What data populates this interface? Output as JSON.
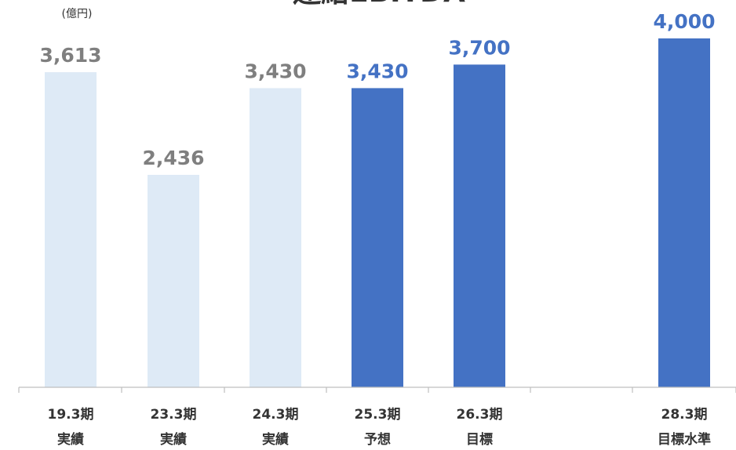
{
  "chart_data": {
    "type": "bar",
    "title": "連結EBITDA",
    "unit_label": "(億円)",
    "ylim": [
      0,
      4000
    ],
    "grid": false,
    "legend": "none",
    "categories": [
      {
        "line1": "19.3期",
        "line2": "実績"
      },
      {
        "line1": "23.3期",
        "line2": "実績"
      },
      {
        "line1": "24.3期",
        "line2": "実績"
      },
      {
        "line1": "25.3期",
        "line2": "予想"
      },
      {
        "line1": "26.3期",
        "line2": "目標"
      },
      {
        "line1": "",
        "line2": ""
      },
      {
        "line1": "28.3期",
        "line2": "目標水準"
      }
    ],
    "values": [
      3613,
      2436,
      3430,
      3430,
      3700,
      null,
      4000
    ],
    "value_labels": [
      "3,613",
      "2,436",
      "3,430",
      "3,430",
      "3,700",
      "",
      "4,000"
    ],
    "bar_styles": [
      "actual",
      "actual",
      "actual",
      "plan",
      "plan",
      "none",
      "plan"
    ]
  },
  "colors": {
    "actual_bar": "#DEEAF6",
    "plan_bar": "#4472C4",
    "actual_label": "#7F7F7F",
    "plan_label": "#4472C4",
    "axis": "#BFBFBF",
    "text": "#333333"
  }
}
